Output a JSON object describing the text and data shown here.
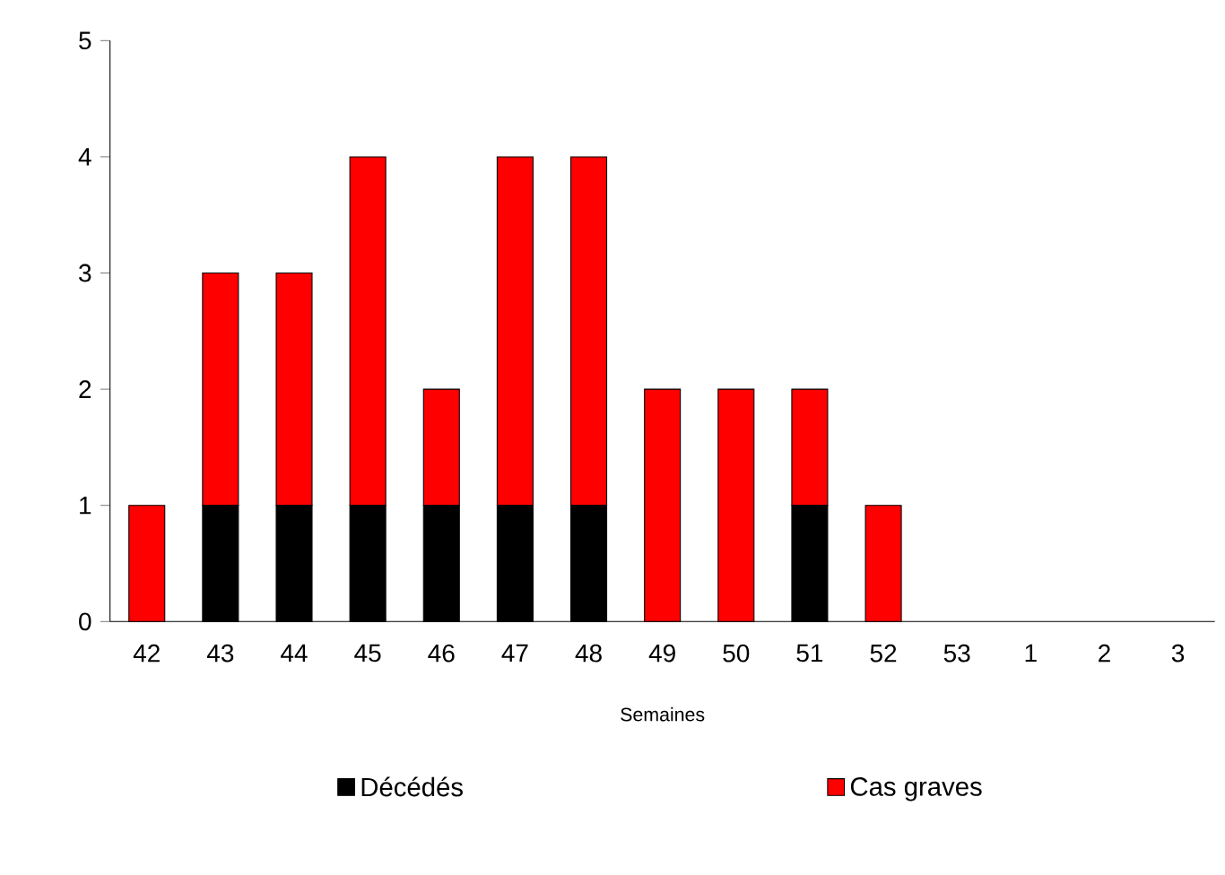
{
  "chart_data": {
    "type": "bar",
    "stacked": true,
    "xlabel": "Semaines",
    "categories": [
      "42",
      "43",
      "44",
      "45",
      "46",
      "47",
      "48",
      "49",
      "50",
      "51",
      "52",
      "53",
      "1",
      "2",
      "3"
    ],
    "series": [
      {
        "name": "Décédés",
        "color": "#000000",
        "values": [
          0,
          1,
          1,
          1,
          1,
          1,
          1,
          0,
          0,
          1,
          0,
          0,
          0,
          0,
          0
        ]
      },
      {
        "name": "Cas graves",
        "color": "#ff0000",
        "values": [
          1,
          2,
          2,
          3,
          1,
          3,
          3,
          2,
          2,
          1,
          1,
          0,
          0,
          0,
          0
        ]
      }
    ],
    "ylim": [
      0,
      5
    ],
    "yticks": [
      0,
      1,
      2,
      3,
      4,
      5
    ],
    "grid": false,
    "legend": "bottom"
  }
}
